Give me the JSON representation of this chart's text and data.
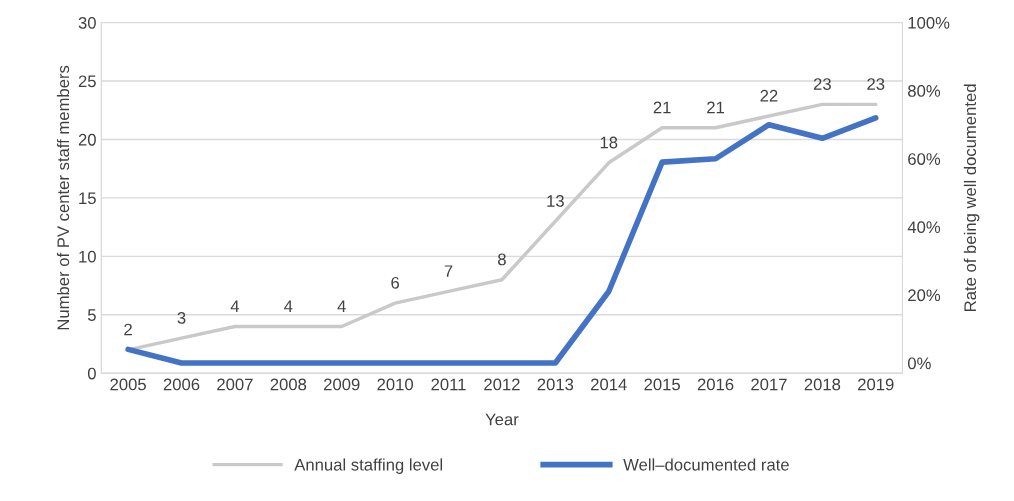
{
  "chart_data": {
    "type": "line",
    "xlabel": "Year",
    "ylabel": "Number of PV center staff members",
    "y2label": "Rate of being well documented",
    "categories": [
      "2005",
      "2006",
      "2007",
      "2008",
      "2009",
      "2010",
      "2011",
      "2012",
      "2013",
      "2014",
      "2015",
      "2016",
      "2017",
      "2018",
      "2019"
    ],
    "series": [
      {
        "name": "Annual staffing level",
        "color": "#c9c9c9",
        "values": [
          2,
          3,
          4,
          4,
          4,
          6,
          7,
          8,
          13,
          18,
          21,
          21,
          22,
          23,
          23
        ],
        "value_labels": [
          "2",
          "3",
          "4",
          "4",
          "4",
          "6",
          "7",
          "8",
          "13",
          "18",
          "21",
          "21",
          "22",
          "23",
          "23"
        ]
      },
      {
        "name": "Well–documented rate",
        "color": "#4472c4",
        "axis": "y2",
        "values": [
          4,
          0,
          0,
          0,
          0,
          0,
          0,
          0,
          0,
          21,
          59,
          60,
          70,
          66,
          72
        ]
      }
    ],
    "ylim": [
      0,
      30
    ],
    "yticks": [
      0,
      5,
      10,
      15,
      20,
      25,
      30
    ],
    "y2lim": [
      -3,
      100
    ],
    "y2ticks": [
      {
        "value": 0,
        "label": "0%"
      },
      {
        "value": 20,
        "label": "20%"
      },
      {
        "value": 40,
        "label": "40%"
      },
      {
        "value": 60,
        "label": "60%"
      },
      {
        "value": 80,
        "label": "80%"
      },
      {
        "value": 100,
        "label": "100%"
      }
    ],
    "grid": "y",
    "legend": "bottom",
    "marker": "none",
    "line_style": "solid"
  }
}
